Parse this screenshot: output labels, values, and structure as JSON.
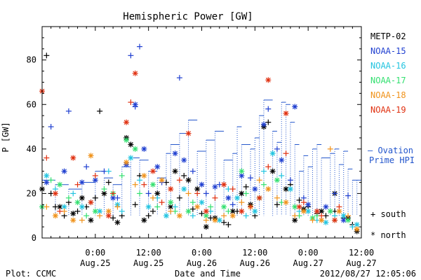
{
  "chart_data": {
    "type": "scatter",
    "title": "Hemispheric Power [GW]",
    "ylabel": "P [GW]",
    "xlabel": "Date and Time",
    "ylim": [
      0,
      95
    ],
    "yticks": [
      0,
      20,
      40,
      60,
      80
    ],
    "x_unit": "hours since 2012/08/24 12:00",
    "xlim": [
      0,
      72
    ],
    "xticks": [
      {
        "hour": 12,
        "time": "0:00",
        "date": "Aug.25"
      },
      {
        "hour": 24,
        "time": "12:00",
        "date": "Aug.25"
      },
      {
        "hour": 36,
        "time": "0:00",
        "date": "Aug.26"
      },
      {
        "hour": 48,
        "time": "12:00",
        "date": "Aug.26"
      },
      {
        "hour": 60,
        "time": "0:00",
        "date": "Aug.27"
      },
      {
        "hour": 72,
        "time": "12:00",
        "date": "Aug.27"
      }
    ],
    "marker_legend": [
      {
        "symbol": "+",
        "label": "south"
      },
      {
        "symbol": "*",
        "label": "north"
      }
    ],
    "ovation": {
      "label_line1": "– Ovation",
      "label_line2": "Prime HPI",
      "color": "#2255cc",
      "steps": [
        [
          0,
          26
        ],
        [
          3,
          24
        ],
        [
          6,
          22
        ],
        [
          9,
          25
        ],
        [
          12,
          30
        ],
        [
          14,
          27
        ],
        [
          16,
          24
        ],
        [
          18,
          32
        ],
        [
          20,
          36
        ],
        [
          22,
          35
        ],
        [
          24,
          30
        ],
        [
          26,
          27
        ],
        [
          28,
          38
        ],
        [
          29,
          42
        ],
        [
          31,
          47
        ],
        [
          33,
          53
        ],
        [
          35,
          39
        ],
        [
          37,
          44
        ],
        [
          39,
          48
        ],
        [
          41,
          35
        ],
        [
          43,
          38
        ],
        [
          44,
          50
        ],
        [
          45,
          42
        ],
        [
          47,
          40
        ],
        [
          48,
          45
        ],
        [
          49,
          55
        ],
        [
          50,
          62
        ],
        [
          52,
          48
        ],
        [
          53,
          43
        ],
        [
          54,
          61
        ],
        [
          55,
          60
        ],
        [
          56,
          52
        ],
        [
          57,
          42
        ],
        [
          58,
          30
        ],
        [
          59,
          37
        ],
        [
          60,
          32
        ],
        [
          61,
          40
        ],
        [
          62,
          42
        ],
        [
          63,
          36
        ],
        [
          65,
          38
        ],
        [
          66,
          40
        ],
        [
          67,
          33
        ],
        [
          68,
          39
        ],
        [
          69,
          31
        ],
        [
          70,
          26
        ],
        [
          71,
          26
        ]
      ]
    },
    "series": [
      {
        "name": "METP-02",
        "color": "#000000",
        "south": [
          [
            1,
            82
          ],
          [
            2,
            20
          ],
          [
            3,
            14
          ],
          [
            5,
            10
          ],
          [
            6,
            16
          ],
          [
            8,
            12
          ],
          [
            10,
            14
          ],
          [
            12,
            18
          ],
          [
            13,
            57
          ],
          [
            15,
            25
          ],
          [
            16,
            9
          ],
          [
            18,
            10
          ],
          [
            21,
            15
          ],
          [
            22,
            28
          ],
          [
            24,
            10
          ],
          [
            25,
            12
          ],
          [
            28,
            25
          ],
          [
            31,
            18
          ],
          [
            32,
            28
          ],
          [
            34,
            13
          ],
          [
            36,
            11
          ],
          [
            38,
            9
          ],
          [
            41,
            7
          ],
          [
            42,
            6
          ],
          [
            44,
            12
          ],
          [
            46,
            23
          ],
          [
            48,
            10
          ],
          [
            51,
            52
          ],
          [
            53,
            15
          ],
          [
            56,
            24
          ],
          [
            58,
            17
          ],
          [
            60,
            14
          ],
          [
            62,
            11
          ],
          [
            64,
            10
          ],
          [
            66,
            12
          ],
          [
            68,
            9
          ],
          [
            70,
            6
          ]
        ],
        "north": [
          [
            0,
            22
          ],
          [
            4,
            14
          ],
          [
            7,
            11
          ],
          [
            9,
            18
          ],
          [
            11,
            8
          ],
          [
            14,
            20
          ],
          [
            17,
            7
          ],
          [
            19,
            45
          ],
          [
            20,
            42
          ],
          [
            23,
            8
          ],
          [
            26,
            20
          ],
          [
            29,
            14
          ],
          [
            30,
            30
          ],
          [
            33,
            26
          ],
          [
            35,
            22
          ],
          [
            37,
            5
          ],
          [
            39,
            9
          ],
          [
            43,
            12
          ],
          [
            45,
            20
          ],
          [
            47,
            15
          ],
          [
            50,
            50
          ],
          [
            52,
            30
          ],
          [
            55,
            22
          ],
          [
            57,
            8
          ],
          [
            59,
            13
          ],
          [
            63,
            12
          ],
          [
            66,
            20
          ],
          [
            69,
            9
          ],
          [
            71,
            3
          ]
        ]
      },
      {
        "name": "NOAA-15",
        "color": "#1f3fd0",
        "south": [
          [
            2,
            50
          ],
          [
            6,
            57
          ],
          [
            10,
            32
          ],
          [
            14,
            30
          ],
          [
            17,
            18
          ],
          [
            20,
            82
          ],
          [
            21,
            59
          ],
          [
            22,
            86
          ],
          [
            24,
            20
          ],
          [
            27,
            25
          ],
          [
            31,
            72
          ],
          [
            34,
            30
          ],
          [
            37,
            20
          ],
          [
            40,
            24
          ],
          [
            43,
            15
          ],
          [
            47,
            27
          ],
          [
            51,
            58
          ],
          [
            53,
            40
          ],
          [
            56,
            26
          ],
          [
            59,
            18
          ],
          [
            62,
            12
          ],
          [
            66,
            20
          ],
          [
            69,
            19
          ]
        ],
        "north": [
          [
            1,
            25
          ],
          [
            5,
            30
          ],
          [
            9,
            25
          ],
          [
            12,
            26
          ],
          [
            16,
            18
          ],
          [
            19,
            33
          ],
          [
            21,
            60
          ],
          [
            23,
            40
          ],
          [
            26,
            32
          ],
          [
            30,
            38
          ],
          [
            32,
            35
          ],
          [
            36,
            24
          ],
          [
            39,
            23
          ],
          [
            42,
            18
          ],
          [
            45,
            28
          ],
          [
            48,
            22
          ],
          [
            50,
            51
          ],
          [
            54,
            35
          ],
          [
            57,
            59
          ],
          [
            60,
            15
          ],
          [
            64,
            14
          ],
          [
            68,
            8
          ]
        ]
      },
      {
        "name": "NOAA-16",
        "color": "#22c4e0",
        "south": [
          [
            0,
            14
          ],
          [
            3,
            22
          ],
          [
            7,
            20
          ],
          [
            11,
            16
          ],
          [
            15,
            30
          ],
          [
            18,
            12
          ],
          [
            22,
            26
          ],
          [
            26,
            18
          ],
          [
            30,
            14
          ],
          [
            34,
            10
          ],
          [
            38,
            12
          ],
          [
            42,
            22
          ],
          [
            46,
            10
          ],
          [
            50,
            30
          ],
          [
            54,
            28
          ],
          [
            58,
            12
          ],
          [
            62,
            8
          ],
          [
            66,
            10
          ],
          [
            70,
            5
          ]
        ],
        "north": [
          [
            1,
            28
          ],
          [
            5,
            14
          ],
          [
            9,
            14
          ],
          [
            13,
            12
          ],
          [
            17,
            15
          ],
          [
            20,
            36
          ],
          [
            24,
            14
          ],
          [
            28,
            10
          ],
          [
            32,
            22
          ],
          [
            36,
            16
          ],
          [
            40,
            8
          ],
          [
            44,
            18
          ],
          [
            48,
            12
          ],
          [
            52,
            38
          ],
          [
            56,
            22
          ],
          [
            60,
            12
          ],
          [
            64,
            7
          ],
          [
            68,
            10
          ],
          [
            71,
            6
          ]
        ]
      },
      {
        "name": "NOAA-17",
        "color": "#33e070",
        "south": [
          [
            2,
            26
          ],
          [
            6,
            18
          ],
          [
            10,
            10
          ],
          [
            14,
            22
          ],
          [
            18,
            28
          ],
          [
            22,
            20
          ],
          [
            26,
            14
          ],
          [
            30,
            12
          ],
          [
            34,
            16
          ],
          [
            38,
            14
          ],
          [
            42,
            12
          ],
          [
            46,
            20
          ],
          [
            50,
            24
          ],
          [
            54,
            16
          ],
          [
            58,
            10
          ],
          [
            62,
            10
          ],
          [
            66,
            8
          ]
        ],
        "north": [
          [
            0,
            14
          ],
          [
            4,
            24
          ],
          [
            8,
            16
          ],
          [
            12,
            12
          ],
          [
            16,
            20
          ],
          [
            19,
            44
          ],
          [
            21,
            40
          ],
          [
            25,
            24
          ],
          [
            29,
            16
          ],
          [
            33,
            12
          ],
          [
            37,
            10
          ],
          [
            41,
            14
          ],
          [
            45,
            30
          ],
          [
            49,
            18
          ],
          [
            53,
            26
          ],
          [
            57,
            14
          ],
          [
            61,
            9
          ],
          [
            65,
            12
          ],
          [
            69,
            8
          ]
        ]
      },
      {
        "name": "NOAA-18",
        "color": "#f0921a",
        "south": [
          [
            1,
            14
          ],
          [
            5,
            12
          ],
          [
            9,
            8
          ],
          [
            13,
            10
          ],
          [
            17,
            14
          ],
          [
            21,
            24
          ],
          [
            25,
            18
          ],
          [
            29,
            12
          ],
          [
            33,
            20
          ],
          [
            37,
            8
          ],
          [
            41,
            10
          ],
          [
            45,
            16
          ],
          [
            49,
            26
          ],
          [
            53,
            18
          ],
          [
            57,
            10
          ],
          [
            61,
            8
          ],
          [
            65,
            40
          ],
          [
            69,
            10
          ]
        ],
        "north": [
          [
            3,
            10
          ],
          [
            7,
            8
          ],
          [
            11,
            37
          ],
          [
            15,
            12
          ],
          [
            19,
            34
          ],
          [
            23,
            28
          ],
          [
            27,
            26
          ],
          [
            31,
            10
          ],
          [
            35,
            14
          ],
          [
            39,
            8
          ],
          [
            43,
            10
          ],
          [
            47,
            14
          ],
          [
            51,
            22
          ],
          [
            55,
            16
          ],
          [
            59,
            12
          ],
          [
            63,
            8
          ],
          [
            67,
            12
          ],
          [
            71,
            4
          ]
        ]
      },
      {
        "name": "NOAA-19",
        "color": "#e03010",
        "south": [
          [
            1,
            36
          ],
          [
            4,
            12
          ],
          [
            8,
            24
          ],
          [
            12,
            28
          ],
          [
            16,
            20
          ],
          [
            20,
            61
          ],
          [
            23,
            24
          ],
          [
            27,
            16
          ],
          [
            31,
            26
          ],
          [
            35,
            20
          ],
          [
            39,
            18
          ],
          [
            43,
            22
          ],
          [
            47,
            14
          ],
          [
            51,
            32
          ],
          [
            55,
            38
          ],
          [
            59,
            16
          ],
          [
            63,
            10
          ],
          [
            67,
            14
          ]
        ],
        "north": [
          [
            0,
            66
          ],
          [
            3,
            20
          ],
          [
            7,
            36
          ],
          [
            11,
            16
          ],
          [
            15,
            10
          ],
          [
            19,
            52
          ],
          [
            21,
            74
          ],
          [
            25,
            30
          ],
          [
            29,
            22
          ],
          [
            33,
            47
          ],
          [
            37,
            12
          ],
          [
            41,
            24
          ],
          [
            45,
            12
          ],
          [
            49,
            18
          ],
          [
            51,
            71
          ],
          [
            55,
            56
          ],
          [
            58,
            14
          ],
          [
            62,
            12
          ],
          [
            66,
            8
          ]
        ]
      }
    ]
  },
  "footer": {
    "plot_credit": "Plot: CCMC",
    "timestamp": "2012/08/27 12:05:06"
  }
}
